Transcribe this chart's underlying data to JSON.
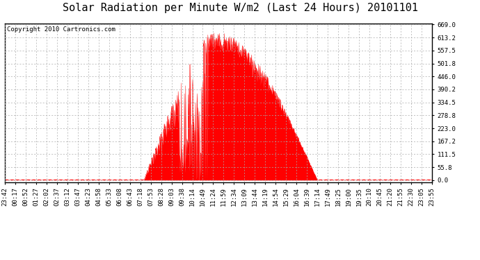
{
  "title": "Solar Radiation per Minute W/m2 (Last 24 Hours) 20101101",
  "copyright": "Copyright 2010 Cartronics.com",
  "y_ticks": [
    0.0,
    55.8,
    111.5,
    167.2,
    223.0,
    278.8,
    334.5,
    390.2,
    446.0,
    501.8,
    557.5,
    613.2,
    669.0
  ],
  "x_tick_labels": [
    "23:42",
    "00:17",
    "00:52",
    "01:27",
    "02:02",
    "02:37",
    "03:12",
    "03:47",
    "04:23",
    "04:58",
    "05:33",
    "06:08",
    "06:43",
    "07:18",
    "07:53",
    "08:28",
    "09:03",
    "09:38",
    "10:14",
    "10:49",
    "11:24",
    "11:59",
    "12:34",
    "13:09",
    "13:44",
    "14:19",
    "14:54",
    "15:29",
    "16:04",
    "16:39",
    "17:14",
    "17:49",
    "18:25",
    "19:00",
    "19:35",
    "20:10",
    "20:45",
    "21:20",
    "21:55",
    "22:30",
    "23:05",
    "23:55"
  ],
  "fill_color": "#FF0000",
  "line_color": "#FF0000",
  "dashed_line_color": "#FF0000",
  "grid_color": "#AAAAAA",
  "bg_color": "#FFFFFF",
  "plot_bg_color": "#FFFFFF",
  "title_fontsize": 11,
  "tick_fontsize": 6.5,
  "copyright_fontsize": 6.5,
  "y_max": 669.0,
  "y_min": 0.0,
  "num_points": 1440,
  "start_hour": 23.7,
  "sunrise_hour": 7.5,
  "sunset_hour": 17.25,
  "solar_noon_hour": 11.58
}
